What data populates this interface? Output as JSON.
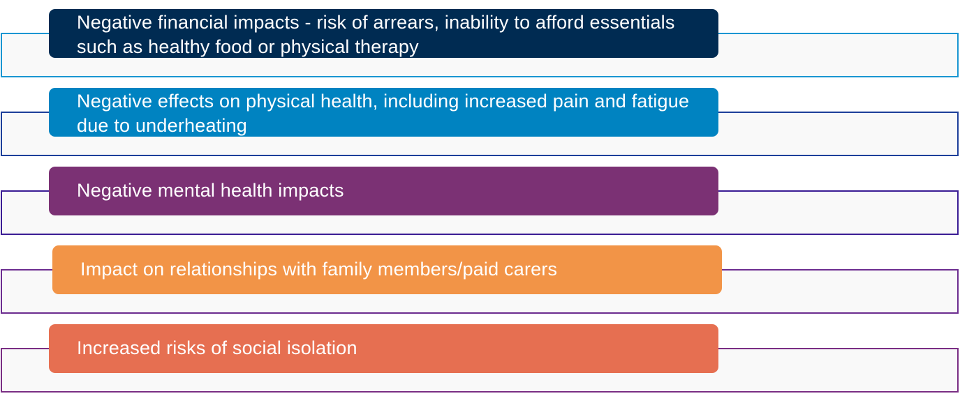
{
  "items": [
    {
      "text": "Negative financial impacts - risk of arrears, inability to afford essentials such as healthy food or physical therapy",
      "fill": "#002b52",
      "border": "#1a96d2"
    },
    {
      "text": "Negative effects on physical health, including increased pain and fatigue due to underheating",
      "fill": "#0083c1",
      "border": "#1d3f9a"
    },
    {
      "text": "Negative mental health impacts",
      "fill": "#7b3174",
      "border": "#3b1d95"
    },
    {
      "text": "Impact on relationships with family members/paid carers",
      "fill": "#f29447",
      "border": "#6c2d90"
    },
    {
      "text": "Increased risks of social isolation",
      "fill": "#e66f51",
      "border": "#7a2e84"
    }
  ]
}
